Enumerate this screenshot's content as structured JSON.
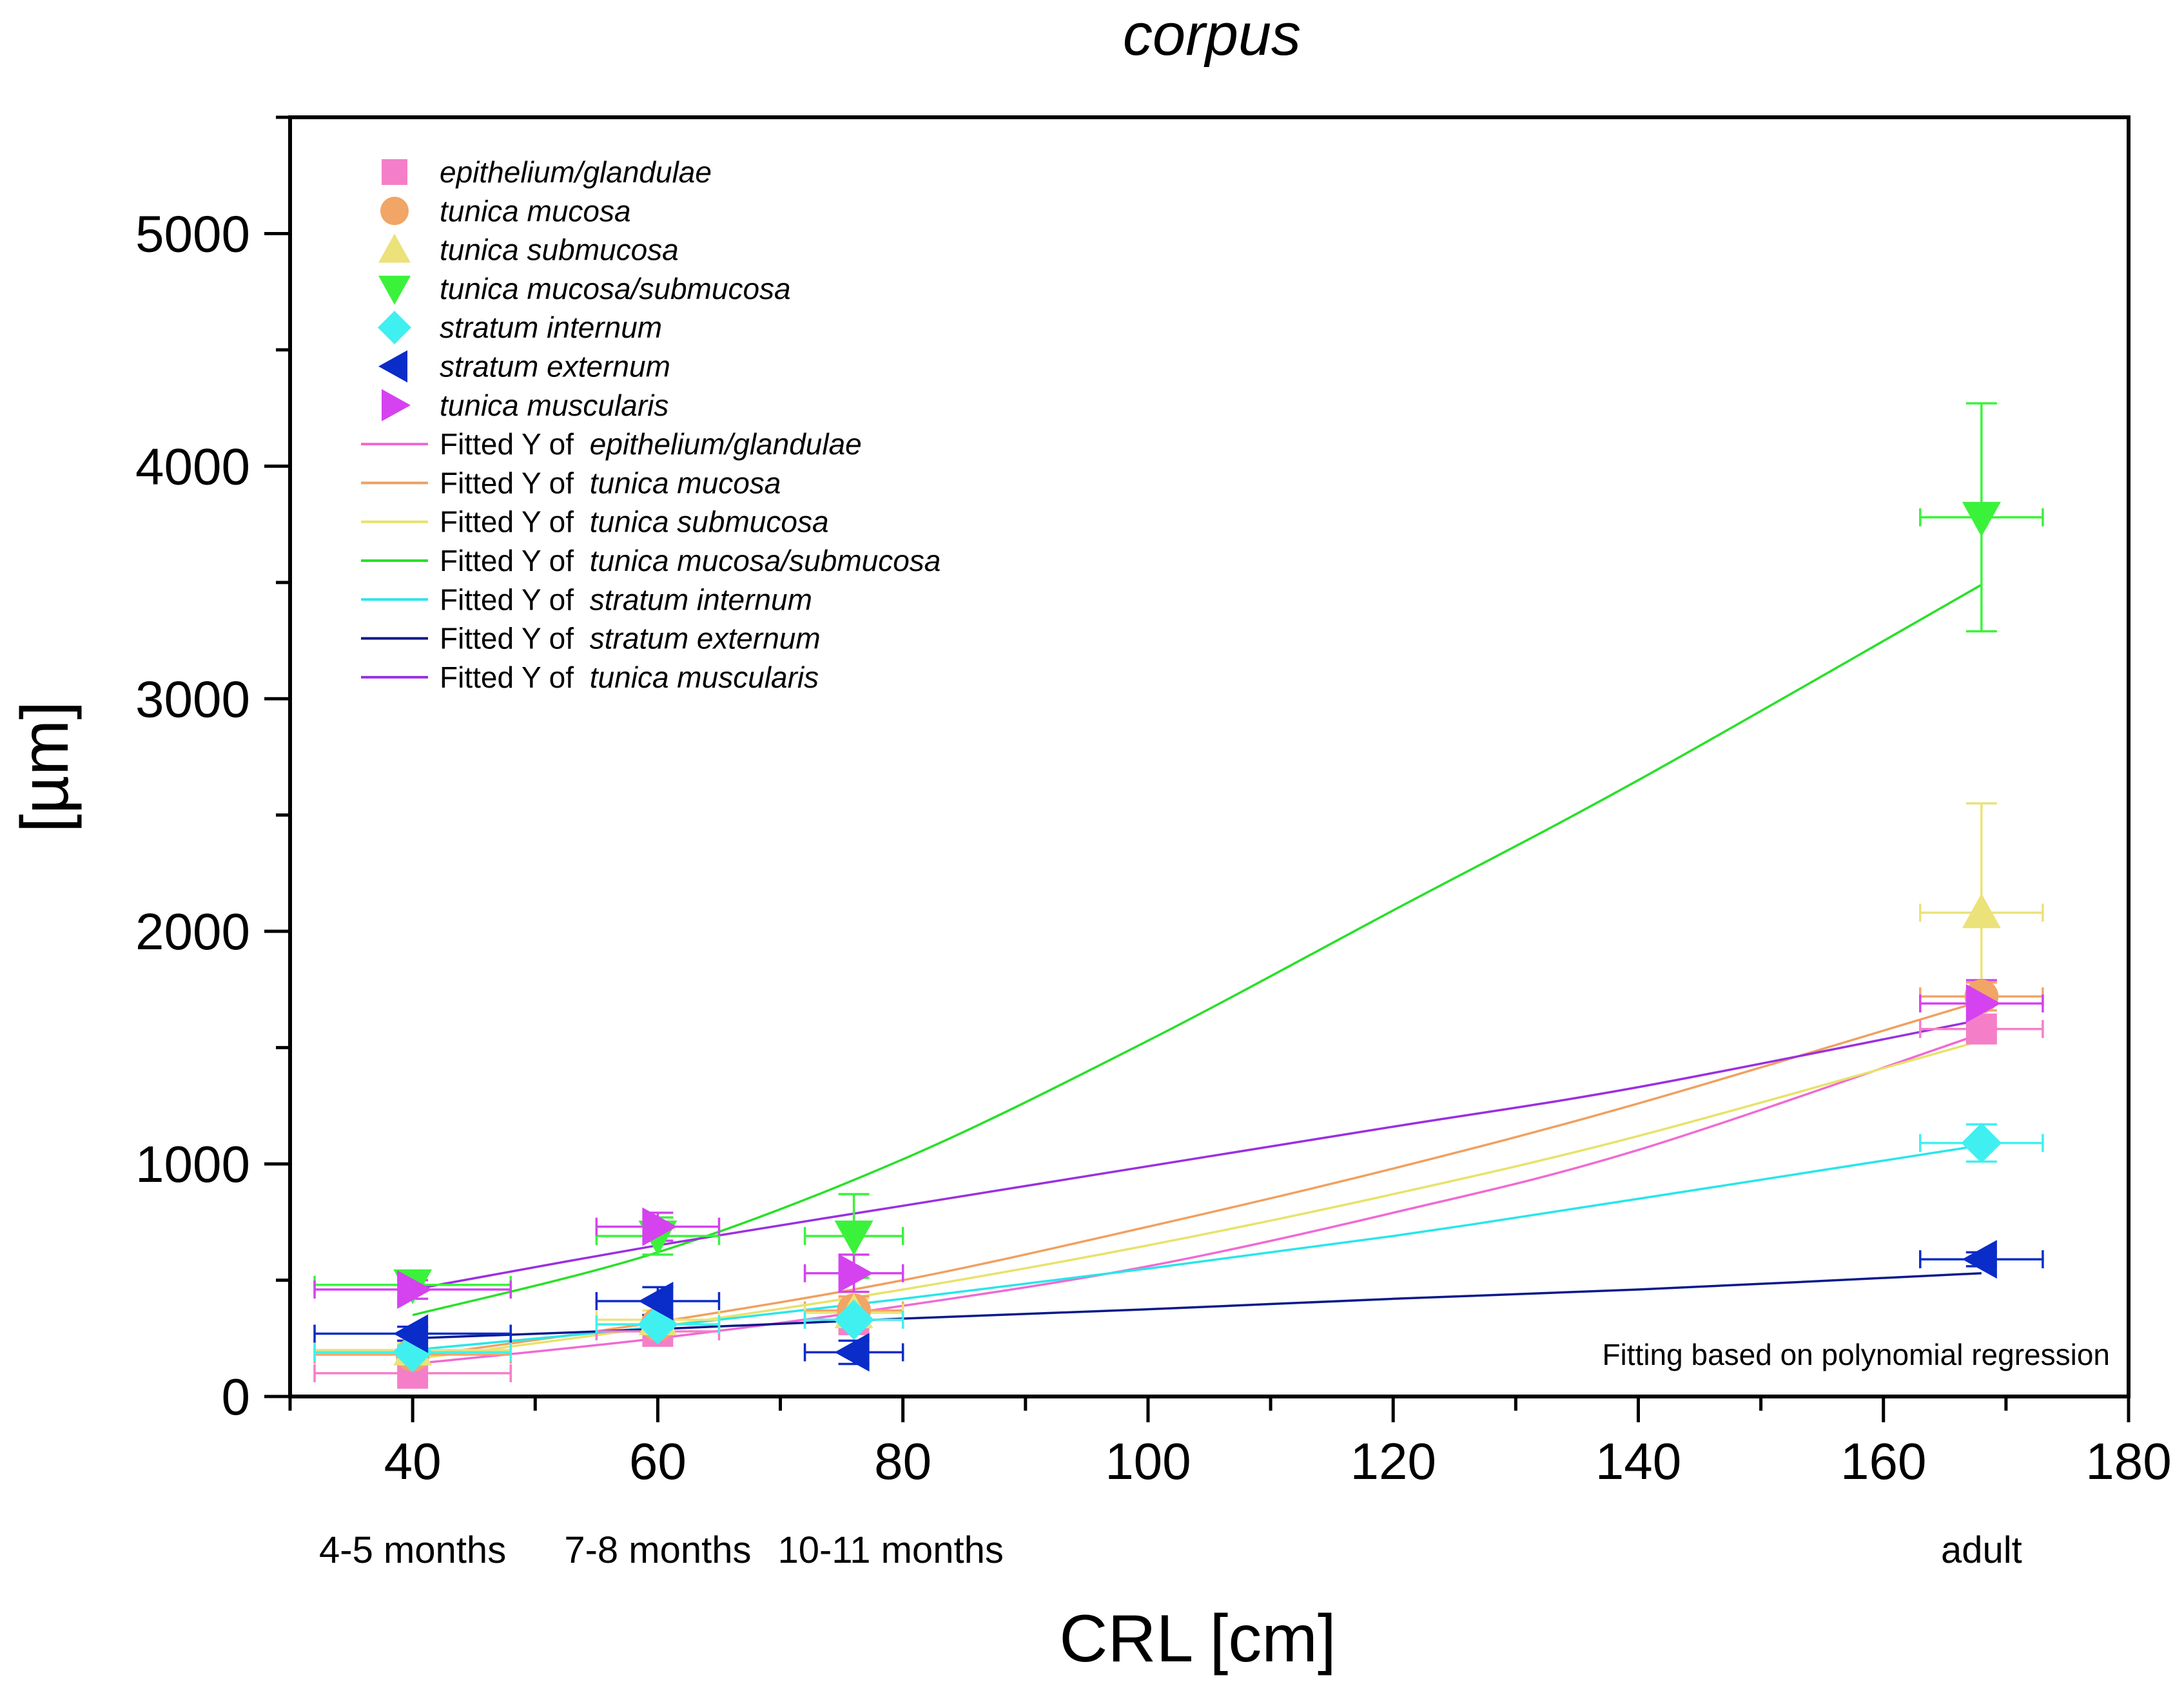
{
  "chart_data": {
    "type": "scatter",
    "title": "corpus",
    "xlabel": "CRL [cm]",
    "ylabel": "[µm]",
    "xlim": [
      30,
      180
    ],
    "ylim": [
      0,
      5500
    ],
    "x_ticks": [
      40,
      60,
      80,
      100,
      120,
      140,
      160,
      180
    ],
    "y_ticks": [
      0,
      1000,
      2000,
      3000,
      4000,
      5000
    ],
    "x_minor_step": 10,
    "y_minor_step": 500,
    "age_labels": [
      {
        "x": 40,
        "text": "4-5 months"
      },
      {
        "x": 60,
        "text": "7-8 months"
      },
      {
        "x": 79,
        "text": "10-11 months"
      },
      {
        "x": 168,
        "text": "adult"
      }
    ],
    "annotation": "Fitting based on polynomial regression",
    "fit_prefix": "Fitted Y of",
    "legend_position": "top-left",
    "series": [
      {
        "name": "epithelium/glandulae",
        "marker": "square",
        "color": "#f47fc8",
        "fit_color": "#f06ad2",
        "points": [
          {
            "x": 40,
            "y": 100
          },
          {
            "x": 60,
            "y": 280
          },
          {
            "x": 76,
            "y": 330
          },
          {
            "x": 168,
            "y": 1580
          }
        ],
        "x_err": [
          8,
          5,
          4,
          5
        ],
        "y_err": [
          30,
          30,
          60,
          40
        ],
        "fit": [
          {
            "x": 40,
            "y": 140
          },
          {
            "x": 60,
            "y": 250
          },
          {
            "x": 80,
            "y": 390
          },
          {
            "x": 100,
            "y": 560
          },
          {
            "x": 120,
            "y": 790
          },
          {
            "x": 140,
            "y": 1060
          },
          {
            "x": 168,
            "y": 1560
          }
        ]
      },
      {
        "name": "tunica mucosa",
        "marker": "circle",
        "color": "#f1a566",
        "fit_color": "#f0a060",
        "points": [
          {
            "x": 40,
            "y": 180
          },
          {
            "x": 60,
            "y": 310
          },
          {
            "x": 76,
            "y": 370
          },
          {
            "x": 168,
            "y": 1720
          }
        ],
        "x_err": [
          8,
          5,
          4,
          5
        ],
        "y_err": [
          30,
          40,
          60,
          60
        ],
        "fit": [
          {
            "x": 40,
            "y": 170
          },
          {
            "x": 60,
            "y": 320
          },
          {
            "x": 80,
            "y": 500
          },
          {
            "x": 100,
            "y": 730
          },
          {
            "x": 120,
            "y": 980
          },
          {
            "x": 140,
            "y": 1260
          },
          {
            "x": 168,
            "y": 1700
          }
        ]
      },
      {
        "name": "tunica submucosa",
        "marker": "triangle-up",
        "color": "#ebe27a",
        "fit_color": "#e8e26a",
        "points": [
          {
            "x": 40,
            "y": 200
          },
          {
            "x": 60,
            "y": 330
          },
          {
            "x": 76,
            "y": 360
          },
          {
            "x": 168,
            "y": 2080
          }
        ],
        "x_err": [
          8,
          5,
          4,
          5
        ],
        "y_err": [
          30,
          40,
          60,
          470
        ],
        "fit": [
          {
            "x": 40,
            "y": 160
          },
          {
            "x": 60,
            "y": 300
          },
          {
            "x": 80,
            "y": 460
          },
          {
            "x": 100,
            "y": 650
          },
          {
            "x": 120,
            "y": 870
          },
          {
            "x": 140,
            "y": 1120
          },
          {
            "x": 168,
            "y": 1530
          }
        ]
      },
      {
        "name": "tunica mucosa/submucosa",
        "marker": "triangle-down",
        "color": "#3bf23b",
        "fit_color": "#28e028",
        "points": [
          {
            "x": 40,
            "y": 480
          },
          {
            "x": 60,
            "y": 690
          },
          {
            "x": 76,
            "y": 690
          },
          {
            "x": 168,
            "y": 3780
          }
        ],
        "x_err": [
          8,
          5,
          4,
          5
        ],
        "y_err": [
          60,
          80,
          180,
          490
        ],
        "fit": [
          {
            "x": 40,
            "y": 350
          },
          {
            "x": 60,
            "y": 620
          },
          {
            "x": 80,
            "y": 1020
          },
          {
            "x": 100,
            "y": 1530
          },
          {
            "x": 120,
            "y": 2090
          },
          {
            "x": 140,
            "y": 2650
          },
          {
            "x": 168,
            "y": 3490
          }
        ]
      },
      {
        "name": "stratum internum",
        "marker": "diamond",
        "color": "#40f0f0",
        "fit_color": "#28e6ea",
        "points": [
          {
            "x": 40,
            "y": 190
          },
          {
            "x": 60,
            "y": 310
          },
          {
            "x": 76,
            "y": 330
          },
          {
            "x": 168,
            "y": 1090
          }
        ],
        "x_err": [
          8,
          5,
          4,
          5
        ],
        "y_err": [
          30,
          40,
          40,
          80
        ],
        "fit": [
          {
            "x": 40,
            "y": 200
          },
          {
            "x": 60,
            "y": 300
          },
          {
            "x": 80,
            "y": 420
          },
          {
            "x": 100,
            "y": 550
          },
          {
            "x": 120,
            "y": 690
          },
          {
            "x": 140,
            "y": 850
          },
          {
            "x": 168,
            "y": 1080
          }
        ]
      },
      {
        "name": "stratum externum",
        "marker": "triangle-left",
        "color": "#0a2cc8",
        "fit_color": "#0a1a8a",
        "points": [
          {
            "x": 40,
            "y": 270
          },
          {
            "x": 60,
            "y": 410
          },
          {
            "x": 76,
            "y": 190
          },
          {
            "x": 168,
            "y": 590
          }
        ],
        "x_err": [
          8,
          5,
          4,
          5
        ],
        "y_err": [
          30,
          60,
          50,
          30
        ],
        "fit": [
          {
            "x": 40,
            "y": 250
          },
          {
            "x": 60,
            "y": 290
          },
          {
            "x": 80,
            "y": 335
          },
          {
            "x": 100,
            "y": 375
          },
          {
            "x": 120,
            "y": 420
          },
          {
            "x": 140,
            "y": 460
          },
          {
            "x": 168,
            "y": 530
          }
        ]
      },
      {
        "name": "tunica muscularis",
        "marker": "triangle-right",
        "color": "#d542f0",
        "fit_color": "#9a30e0",
        "points": [
          {
            "x": 40,
            "y": 460
          },
          {
            "x": 60,
            "y": 730
          },
          {
            "x": 76,
            "y": 530
          },
          {
            "x": 168,
            "y": 1690
          }
        ],
        "x_err": [
          8,
          5,
          4,
          5
        ],
        "y_err": [
          40,
          60,
          80,
          100
        ],
        "fit": [
          {
            "x": 40,
            "y": 460
          },
          {
            "x": 60,
            "y": 650
          },
          {
            "x": 80,
            "y": 820
          },
          {
            "x": 100,
            "y": 990
          },
          {
            "x": 120,
            "y": 1160
          },
          {
            "x": 140,
            "y": 1330
          },
          {
            "x": 168,
            "y": 1620
          }
        ]
      }
    ]
  }
}
